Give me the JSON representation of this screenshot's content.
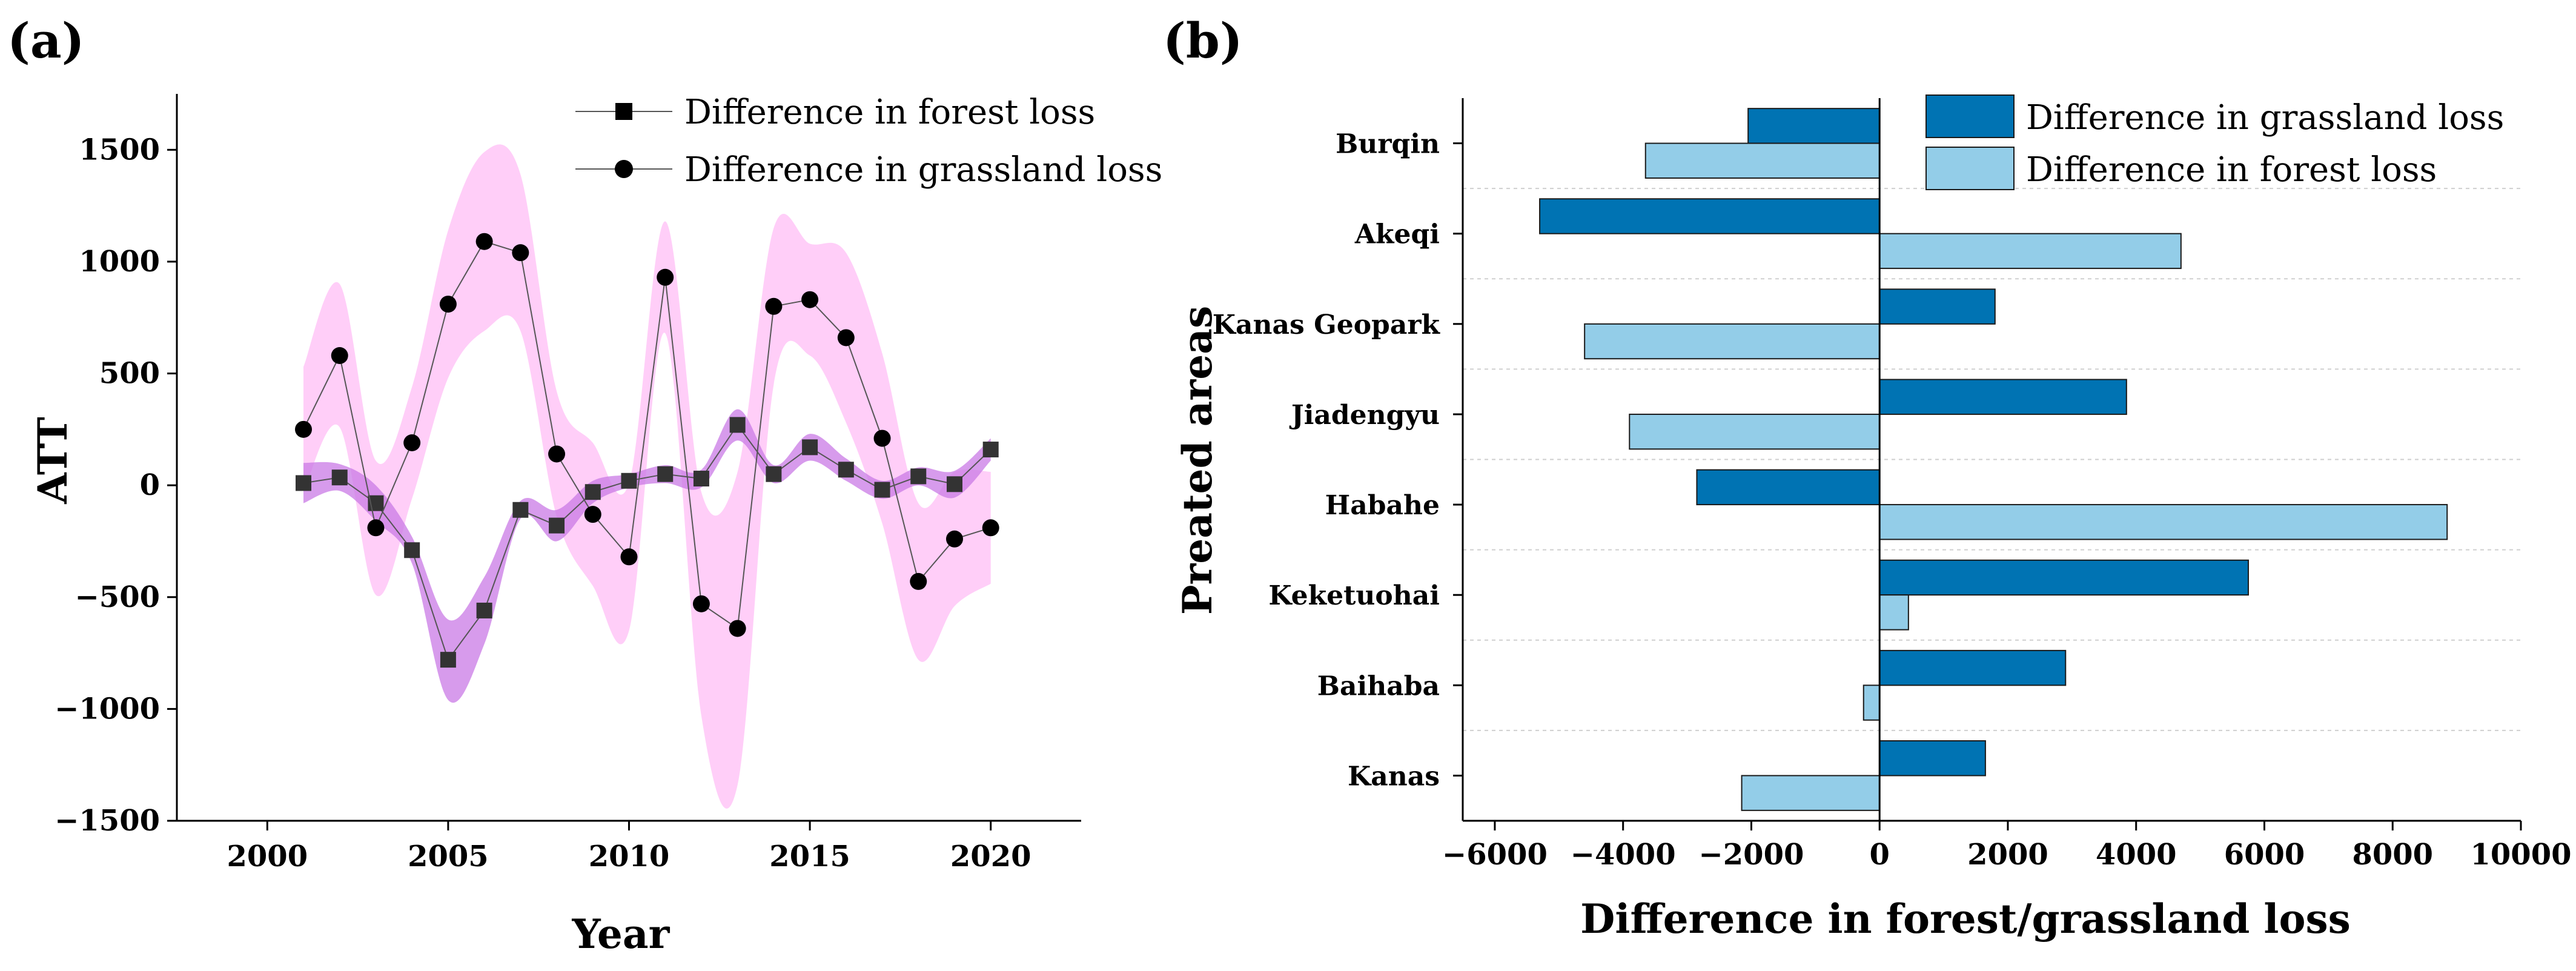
{
  "panel_a": {
    "label": "(a)",
    "colors": {
      "band": "#ffb3f5",
      "forest_band": "#c97ae6",
      "line": "#555555",
      "marker": "#000000",
      "forest_marker": "#333333"
    },
    "legend": [
      "Difference in forest loss",
      "Difference in grassland loss"
    ],
    "chart_data": {
      "type": "line",
      "title": "",
      "xlabel": "Year",
      "ylabel": "ATT",
      "xlim": [
        1997.5,
        2022.5
      ],
      "ylim": [
        -1500,
        1750
      ],
      "xticks": [
        "2000",
        "2005",
        "2010",
        "2015",
        "2020"
      ],
      "yticks": [
        "−1500",
        "−1000",
        "−500",
        "0",
        "500",
        "1000",
        "1500"
      ],
      "x": [
        2001,
        2002,
        2003,
        2004,
        2005,
        2006,
        2007,
        2008,
        2009,
        2010,
        2011,
        2012,
        2013,
        2014,
        2015,
        2016,
        2017,
        2018,
        2019,
        2020
      ],
      "series": [
        {
          "name": "Difference in forest loss",
          "marker": "square",
          "values": [
            10,
            35,
            -80,
            -290,
            -780,
            -560,
            -110,
            -180,
            -30,
            20,
            50,
            30,
            270,
            50,
            170,
            70,
            -20,
            40,
            5,
            160
          ],
          "band_half_width": [
            90,
            60,
            80,
            60,
            180,
            150,
            40,
            70,
            50,
            30,
            40,
            40,
            70,
            40,
            60,
            50,
            40,
            40,
            60,
            50
          ]
        },
        {
          "name": "Difference in grassland loss",
          "marker": "circle",
          "values": [
            250,
            580,
            -190,
            190,
            810,
            1090,
            1040,
            140,
            -130,
            -320,
            930,
            -530,
            -640,
            800,
            830,
            660,
            210,
            -430,
            -240,
            -190
          ],
          "band_half_width": [
            280,
            320,
            300,
            250,
            330,
            400,
            350,
            280,
            320,
            330,
            250,
            500,
            700,
            350,
            250,
            380,
            380,
            350,
            300,
            250
          ]
        }
      ]
    }
  },
  "panel_b": {
    "label": "(b)",
    "colors": {
      "grassland": "#0073b3",
      "forest": "#93cde8",
      "edge": "#1a1a1a",
      "grid": "#cfcfcf"
    },
    "legend": [
      "Difference in grassland loss",
      "Difference in forest loss"
    ],
    "chart_data": {
      "type": "bar",
      "orientation": "horizontal",
      "title": "",
      "xlabel": "Difference in forest/grassland loss",
      "ylabel": "Preated areas",
      "xlim": [
        -6500,
        10000
      ],
      "xticks": [
        "−6000",
        "−4000",
        "−2000",
        "0",
        "2000",
        "4000",
        "6000",
        "8000",
        "10000"
      ],
      "categories": [
        "Burqin",
        "Akeqi",
        "Kanas Geopark",
        "Jiadengyu",
        "Habahe",
        "Keketuohai",
        "Baihaba",
        "Kanas"
      ],
      "series": [
        {
          "name": "Difference in grassland loss",
          "values": [
            -2050,
            -5300,
            1800,
            3850,
            -2850,
            5750,
            2900,
            1650
          ]
        },
        {
          "name": "Difference in forest loss",
          "values": [
            -3650,
            4700,
            -4600,
            -3900,
            8850,
            450,
            -250,
            -2150
          ]
        }
      ]
    }
  }
}
